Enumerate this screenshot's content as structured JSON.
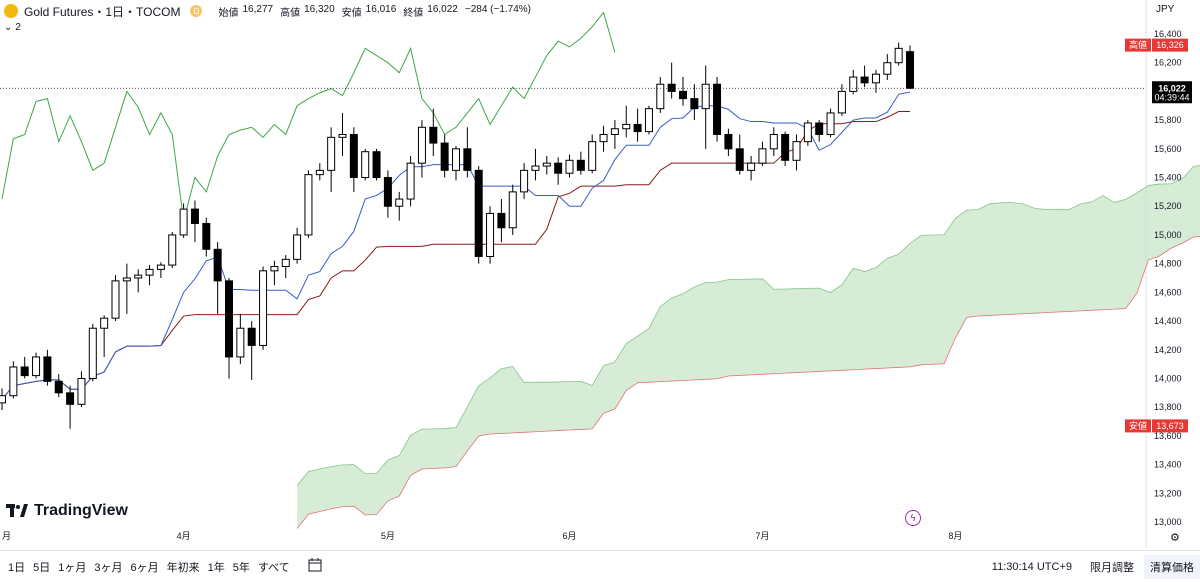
{
  "header": {
    "symbol": "Gold Futures・1日・TOCOM",
    "badge": "D",
    "open_label": "始値",
    "open": "16,277",
    "high_label": "高値",
    "high": "16,320",
    "low_label": "安値",
    "low": "16,016",
    "close_label": "終値",
    "close": "16,022",
    "change": "−284 (−1.74%)"
  },
  "indicators_collapsed": "2",
  "currency": "JPY",
  "brand": "TradingView",
  "price_tags": {
    "high_label": "高値",
    "high_value": "16,326",
    "last_value": "16,022",
    "countdown": "04:39:44",
    "low_label": "安値",
    "low_value": "13,673"
  },
  "toolbar": {
    "timeframes": [
      "1日",
      "5日",
      "1ヶ月",
      "3ヶ月",
      "6ヶ月",
      "年初来",
      "1年",
      "5年",
      "すべて"
    ],
    "clock": "11:30:14 UTC+9",
    "btn_contract": "限月調整",
    "btn_settle": "清算価格"
  },
  "colors": {
    "up_fill": "#ffffff",
    "down_fill": "#000000",
    "candle_border": "#000000",
    "tenkan": "#3a5bc7",
    "kijun": "#8b1a1a",
    "chikou": "#3fa64a",
    "cloud_fill": "#c8e6c9",
    "span_a": "#3fa64a",
    "span_b": "#e57373",
    "tag_red": "#e53935",
    "tag_black": "#000000"
  },
  "chart_data": {
    "type": "candlestick",
    "y_ticks": [
      "16,400",
      "16,200",
      "16,000",
      "15,800",
      "15,600",
      "15,400",
      "15,200",
      "15,000",
      "14,800",
      "14,600",
      "14,400",
      "14,200",
      "14,000",
      "13,800",
      "13,600",
      "13,400",
      "13,200",
      "13,000"
    ],
    "ylim": [
      13000,
      16400
    ],
    "x_tick_labels": [
      "月",
      "4月",
      "5月",
      "6月",
      "7月",
      "8月"
    ],
    "candles": [
      [
        13830,
        13930,
        13780,
        13880
      ],
      [
        13880,
        14120,
        13860,
        14080
      ],
      [
        14080,
        14150,
        14000,
        14020
      ],
      [
        14020,
        14180,
        14000,
        14150
      ],
      [
        14150,
        14200,
        13950,
        13980
      ],
      [
        13980,
        14030,
        13870,
        13900
      ],
      [
        13900,
        13950,
        13650,
        13820
      ],
      [
        13820,
        14050,
        13800,
        14000
      ],
      [
        14000,
        14380,
        13980,
        14350
      ],
      [
        14350,
        14440,
        14150,
        14420
      ],
      [
        14420,
        14720,
        14400,
        14680
      ],
      [
        14680,
        14800,
        14450,
        14700
      ],
      [
        14700,
        14760,
        14600,
        14720
      ],
      [
        14720,
        14790,
        14650,
        14760
      ],
      [
        14760,
        14810,
        14700,
        14790
      ],
      [
        14790,
        15020,
        14770,
        15000
      ],
      [
        15000,
        15220,
        14980,
        15180
      ],
      [
        15180,
        15240,
        14950,
        15080
      ],
      [
        15080,
        15120,
        14850,
        14900
      ],
      [
        14900,
        14950,
        14450,
        14680
      ],
      [
        14680,
        14700,
        14000,
        14150
      ],
      [
        14150,
        14450,
        14100,
        14350
      ],
      [
        14350,
        14400,
        13990,
        14230
      ],
      [
        14230,
        14780,
        14200,
        14750
      ],
      [
        14750,
        14820,
        14650,
        14780
      ],
      [
        14780,
        14860,
        14700,
        14830
      ],
      [
        14830,
        15050,
        14800,
        15000
      ],
      [
        15000,
        15450,
        14980,
        15420
      ],
      [
        15420,
        15500,
        15380,
        15450
      ],
      [
        15450,
        15750,
        15300,
        15680
      ],
      [
        15680,
        15850,
        15550,
        15700
      ],
      [
        15700,
        15750,
        15300,
        15400
      ],
      [
        15400,
        15600,
        15380,
        15580
      ],
      [
        15580,
        15600,
        15380,
        15400
      ],
      [
        15400,
        15450,
        15120,
        15200
      ],
      [
        15200,
        15300,
        15100,
        15250
      ],
      [
        15250,
        15550,
        15200,
        15500
      ],
      [
        15500,
        15800,
        15400,
        15750
      ],
      [
        15750,
        15880,
        15550,
        15640
      ],
      [
        15640,
        15700,
        15400,
        15450
      ],
      [
        15450,
        15620,
        15380,
        15600
      ],
      [
        15600,
        15750,
        15400,
        15450
      ],
      [
        15450,
        15480,
        14800,
        14850
      ],
      [
        14850,
        15200,
        14800,
        15150
      ],
      [
        15150,
        15250,
        14950,
        15050
      ],
      [
        15050,
        15350,
        15000,
        15300
      ],
      [
        15300,
        15500,
        15250,
        15450
      ],
      [
        15450,
        15600,
        15380,
        15480
      ],
      [
        15480,
        15550,
        15420,
        15500
      ],
      [
        15500,
        15540,
        15350,
        15430
      ],
      [
        15430,
        15560,
        15400,
        15520
      ],
      [
        15520,
        15580,
        15420,
        15450
      ],
      [
        15450,
        15700,
        15430,
        15650
      ],
      [
        15650,
        15760,
        15580,
        15700
      ],
      [
        15700,
        15800,
        15600,
        15740
      ],
      [
        15740,
        15900,
        15680,
        15770
      ],
      [
        15770,
        15880,
        15650,
        15720
      ],
      [
        15720,
        15900,
        15700,
        15880
      ],
      [
        15880,
        16100,
        15850,
        16050
      ],
      [
        16050,
        16200,
        15950,
        16000
      ],
      [
        16000,
        16100,
        15900,
        15950
      ],
      [
        15950,
        16050,
        15800,
        15880
      ],
      [
        15880,
        16180,
        15600,
        16050
      ],
      [
        16050,
        16100,
        15650,
        15700
      ],
      [
        15700,
        15740,
        15550,
        15600
      ],
      [
        15600,
        15700,
        15420,
        15450
      ],
      [
        15450,
        15550,
        15380,
        15500
      ],
      [
        15500,
        15650,
        15480,
        15600
      ],
      [
        15600,
        15750,
        15550,
        15700
      ],
      [
        15700,
        15720,
        15480,
        15520
      ],
      [
        15520,
        15700,
        15450,
        15650
      ],
      [
        15650,
        15800,
        15620,
        15780
      ],
      [
        15780,
        15800,
        15650,
        15700
      ],
      [
        15700,
        15880,
        15680,
        15850
      ],
      [
        15850,
        16050,
        15830,
        16000
      ],
      [
        16000,
        16150,
        15980,
        16100
      ],
      [
        16100,
        16180,
        16030,
        16060
      ],
      [
        16060,
        16150,
        15990,
        16120
      ],
      [
        16120,
        16260,
        16080,
        16200
      ],
      [
        16200,
        16340,
        16180,
        16300
      ],
      [
        16277,
        16320,
        16016,
        16022
      ]
    ]
  }
}
